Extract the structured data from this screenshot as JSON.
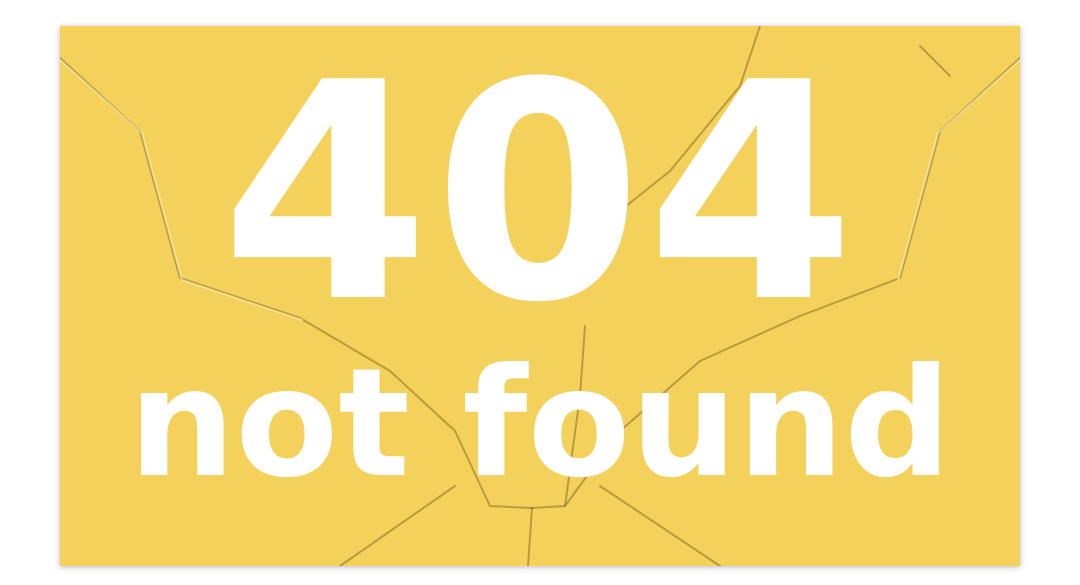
{
  "error": {
    "code": "404",
    "message": "not found"
  },
  "colors": {
    "background": "#f4d15b",
    "text": "#ffffff",
    "crack": "#8a6f22"
  }
}
